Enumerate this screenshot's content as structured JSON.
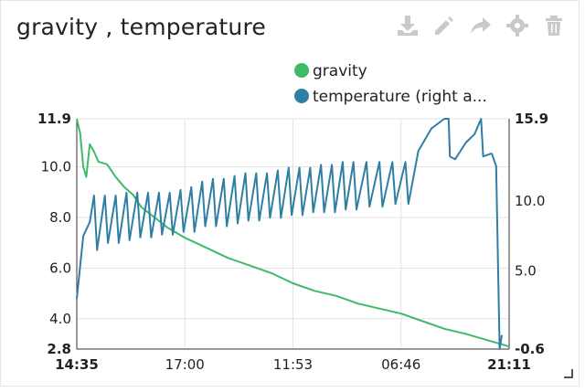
{
  "widget": {
    "title": "gravity , temperature",
    "toolbar": [
      {
        "name": "download-icon",
        "color": "#c9c9c9"
      },
      {
        "name": "edit-icon",
        "color": "#c9c9c9"
      },
      {
        "name": "share-icon",
        "color": "#c9c9c9"
      },
      {
        "name": "settings-icon",
        "color": "#c9c9c9"
      },
      {
        "name": "delete-icon",
        "color": "#c9c9c9"
      }
    ]
  },
  "chart_data": {
    "type": "line",
    "x_ticks": [
      "14:35",
      "17:00",
      "11:53",
      "06:46",
      "21:11"
    ],
    "y_left_ticks": [
      "2.8",
      "4.0",
      "6.0",
      "8.0",
      "10.0",
      "11.9"
    ],
    "y_right_ticks": [
      "-0.6",
      "5.0",
      "10.0",
      "15.9"
    ],
    "ylim_left": [
      2.8,
      11.9
    ],
    "ylim_right": [
      -0.6,
      15.9
    ],
    "xlim": [
      0,
      100
    ],
    "grid": true,
    "legend_position": "top",
    "series": [
      {
        "name": "gravity",
        "axis": "left",
        "color": "#3dbb66",
        "points": [
          [
            0,
            11.9
          ],
          [
            0.8,
            11.3
          ],
          [
            1.5,
            10.0
          ],
          [
            2.2,
            9.6
          ],
          [
            3,
            10.9
          ],
          [
            4,
            10.6
          ],
          [
            5,
            10.2
          ],
          [
            7,
            10.1
          ],
          [
            9,
            9.6
          ],
          [
            11,
            9.2
          ],
          [
            13,
            8.9
          ],
          [
            15,
            8.4
          ],
          [
            18,
            8.0
          ],
          [
            21,
            7.6
          ],
          [
            25,
            7.2
          ],
          [
            30,
            6.8
          ],
          [
            35,
            6.4
          ],
          [
            40,
            6.1
          ],
          [
            45,
            5.8
          ],
          [
            50,
            5.4
          ],
          [
            55,
            5.1
          ],
          [
            60,
            4.9
          ],
          [
            65,
            4.6
          ],
          [
            70,
            4.4
          ],
          [
            75,
            4.2
          ],
          [
            80,
            3.9
          ],
          [
            85,
            3.6
          ],
          [
            90,
            3.4
          ],
          [
            94,
            3.2
          ],
          [
            97,
            3.05
          ],
          [
            99,
            2.95
          ],
          [
            100,
            2.9
          ]
        ]
      },
      {
        "name": "temperature (right a...",
        "axis": "right",
        "color": "#2f7fa5",
        "points": [
          [
            0,
            3.0
          ],
          [
            1.5,
            7.5
          ],
          [
            3,
            8.5
          ],
          [
            4,
            10.4
          ],
          [
            4.7,
            6.5
          ],
          [
            6.5,
            10.4
          ],
          [
            7.2,
            7.0
          ],
          [
            9,
            10.4
          ],
          [
            9.7,
            7.0
          ],
          [
            11.5,
            10.6
          ],
          [
            12.2,
            7.2
          ],
          [
            14,
            10.6
          ],
          [
            14.7,
            7.4
          ],
          [
            16.5,
            10.6
          ],
          [
            17.2,
            7.4
          ],
          [
            19,
            10.6
          ],
          [
            19.7,
            7.6
          ],
          [
            21.5,
            10.6
          ],
          [
            22.2,
            7.6
          ],
          [
            24,
            10.8
          ],
          [
            24.7,
            7.8
          ],
          [
            26.5,
            11.0
          ],
          [
            27.2,
            7.8
          ],
          [
            29,
            11.4
          ],
          [
            29.7,
            8.2
          ],
          [
            31.5,
            11.6
          ],
          [
            32.2,
            8.2
          ],
          [
            34,
            11.6
          ],
          [
            34.7,
            8.2
          ],
          [
            36.5,
            11.8
          ],
          [
            37.2,
            8.4
          ],
          [
            39,
            12.0
          ],
          [
            39.7,
            8.6
          ],
          [
            41.5,
            12.0
          ],
          [
            42.2,
            8.6
          ],
          [
            44,
            12.0
          ],
          [
            44.7,
            8.8
          ],
          [
            46.5,
            12.2
          ],
          [
            47.2,
            8.8
          ],
          [
            49,
            12.4
          ],
          [
            49.7,
            9.0
          ],
          [
            51.5,
            12.4
          ],
          [
            52.2,
            9.0
          ],
          [
            54,
            12.4
          ],
          [
            54.7,
            9.2
          ],
          [
            56.5,
            12.6
          ],
          [
            57.2,
            9.2
          ],
          [
            59,
            12.6
          ],
          [
            59.7,
            9.2
          ],
          [
            61.5,
            12.8
          ],
          [
            62.2,
            9.4
          ],
          [
            64,
            12.8
          ],
          [
            64.7,
            9.4
          ],
          [
            67,
            12.8
          ],
          [
            67.7,
            9.6
          ],
          [
            70,
            12.8
          ],
          [
            70.7,
            9.6
          ],
          [
            73,
            12.8
          ],
          [
            73.7,
            9.8
          ],
          [
            76,
            12.8
          ],
          [
            76.7,
            9.8
          ],
          [
            79,
            13.6
          ],
          [
            82,
            15.2
          ],
          [
            85,
            15.9
          ],
          [
            86,
            15.9
          ],
          [
            86.3,
            13.2
          ],
          [
            87.5,
            13.0
          ],
          [
            90,
            14.2
          ],
          [
            92,
            14.8
          ],
          [
            93.5,
            15.9
          ],
          [
            94,
            13.2
          ],
          [
            95.8,
            13.4
          ],
          [
            96,
            13.4
          ],
          [
            97,
            12.5
          ],
          [
            97.8,
            -0.6
          ],
          [
            98.3,
            0.4
          ]
        ]
      }
    ]
  }
}
